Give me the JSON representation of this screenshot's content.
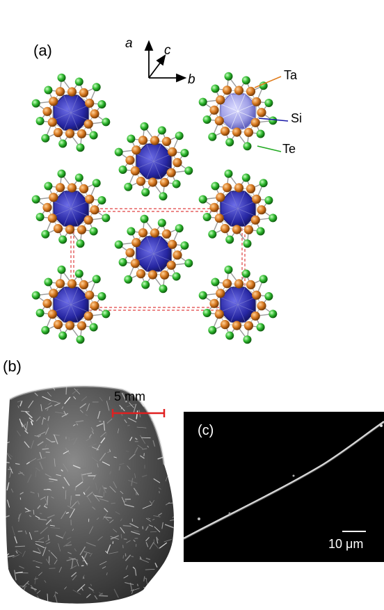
{
  "panels": {
    "a": {
      "label": "(a)",
      "axes": {
        "a": "a",
        "b": "b",
        "c": "c"
      },
      "atoms": [
        {
          "name": "Ta",
          "color": "#e07b1a"
        },
        {
          "name": "Si",
          "color": "#1a1aa8"
        },
        {
          "name": "Te",
          "color": "#22aa22"
        }
      ]
    },
    "b": {
      "label": "(b)",
      "scale_bar": "5 mm",
      "scale_color": "#e02020"
    },
    "c": {
      "label": "(c)",
      "scale_bar": "10 μm"
    }
  },
  "colors": {
    "ta": "#d87a22",
    "si": "#2b2ba0",
    "te": "#2eb82e",
    "bond": "#9a9a9a",
    "cell": "#e04040"
  }
}
